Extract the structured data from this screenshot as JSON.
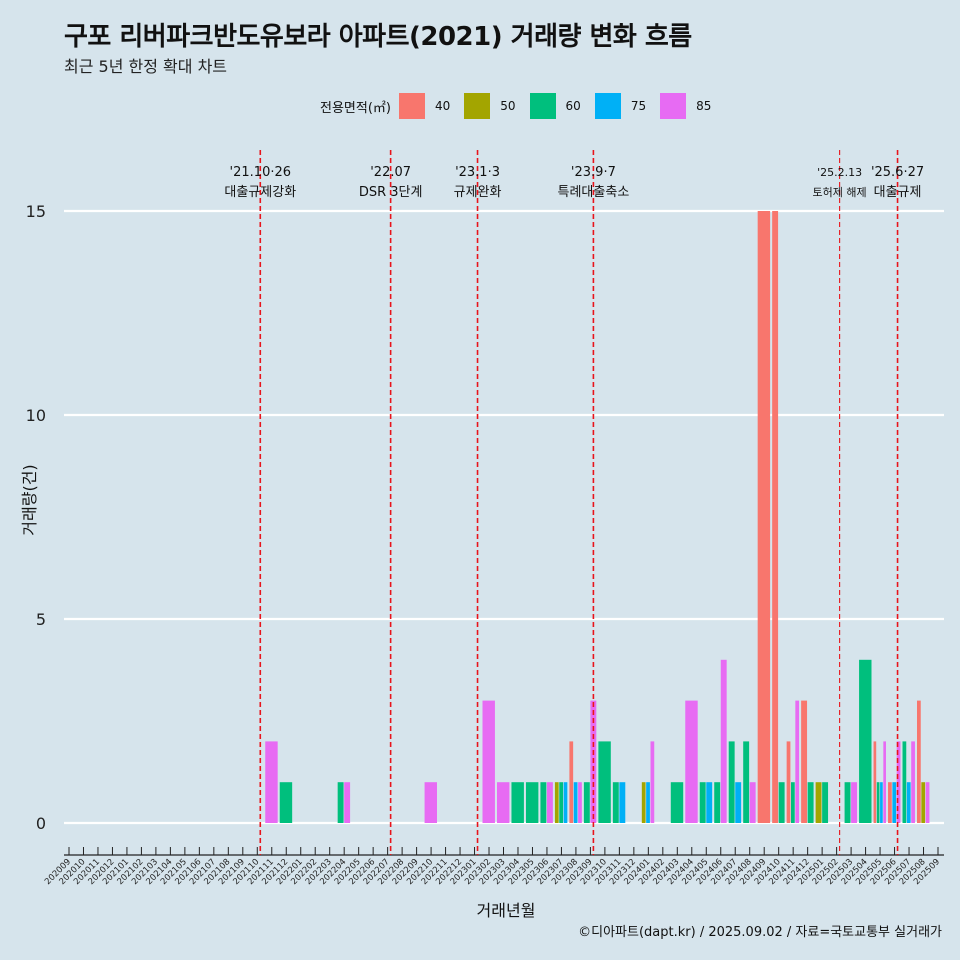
{
  "title": "구포 리버파크반도유보라 아파트(2021) 거래량 변화 흐름",
  "subtitle": "최근 5년 한정 확대 차트",
  "caption": "©디아파트(dapt.kr) / 2025.09.02 / 자료=국토교통부 실거래가",
  "legend": {
    "title": "전용면적(㎡)",
    "items": [
      {
        "label": "40",
        "color": "#f8766d"
      },
      {
        "label": "50",
        "color": "#a3a500"
      },
      {
        "label": "60",
        "color": "#00bf7d"
      },
      {
        "label": "75",
        "color": "#00b0f6"
      },
      {
        "label": "85",
        "color": "#e76bf3"
      }
    ]
  },
  "chart_data": {
    "type": "bar",
    "stacked": false,
    "xlabel": "거래년월",
    "ylabel": "거래량(건)",
    "ylim": [
      0,
      16
    ],
    "yticks": [
      0,
      5,
      10,
      15
    ],
    "grid": "horizontal",
    "categories": [
      "202009",
      "202010",
      "202011",
      "202012",
      "202101",
      "202102",
      "202103",
      "202104",
      "202105",
      "202106",
      "202107",
      "202108",
      "202109",
      "202110",
      "202111",
      "202112",
      "202201",
      "202202",
      "202203",
      "202204",
      "202205",
      "202206",
      "202207",
      "202208",
      "202209",
      "202210",
      "202211",
      "202212",
      "202301",
      "202302",
      "202303",
      "202304",
      "202305",
      "202306",
      "202307",
      "202308",
      "202309",
      "202310",
      "202311",
      "202312",
      "202401",
      "202402",
      "202403",
      "202404",
      "202405",
      "202406",
      "202407",
      "202408",
      "202409",
      "202410",
      "202411",
      "202412",
      "202501",
      "202502",
      "202503",
      "202504",
      "202505",
      "202506",
      "202507",
      "202508",
      "202509"
    ],
    "series_colors": {
      "40": "#f8766d",
      "50": "#a3a500",
      "60": "#00bf7d",
      "75": "#00b0f6",
      "85": "#e76bf3"
    },
    "groups": [
      {
        "month": "202111",
        "bars": [
          {
            "area": "85",
            "value": 2
          }
        ]
      },
      {
        "month": "202112",
        "bars": [
          {
            "area": "60",
            "value": 1
          }
        ]
      },
      {
        "month": "202204",
        "bars": [
          {
            "area": "60",
            "value": 1
          },
          {
            "area": "85",
            "value": 1
          }
        ]
      },
      {
        "month": "202210",
        "bars": [
          {
            "area": "85",
            "value": 1
          }
        ]
      },
      {
        "month": "202302",
        "bars": [
          {
            "area": "85",
            "value": 3
          }
        ]
      },
      {
        "month": "202303",
        "bars": [
          {
            "area": "85",
            "value": 1
          }
        ]
      },
      {
        "month": "202304",
        "bars": [
          {
            "area": "60",
            "value": 1
          }
        ]
      },
      {
        "month": "202305",
        "bars": [
          {
            "area": "60",
            "value": 1
          }
        ]
      },
      {
        "month": "202306",
        "bars": [
          {
            "area": "60",
            "value": 1
          },
          {
            "area": "85",
            "value": 1
          }
        ]
      },
      {
        "month": "202307",
        "bars": [
          {
            "area": "50",
            "value": 1
          },
          {
            "area": "60",
            "value": 1
          },
          {
            "area": "75",
            "value": 1
          }
        ]
      },
      {
        "month": "202308",
        "bars": [
          {
            "area": "40",
            "value": 2
          },
          {
            "area": "75",
            "value": 1
          },
          {
            "area": "85",
            "value": 1
          }
        ]
      },
      {
        "month": "202309",
        "bars": [
          {
            "area": "60",
            "value": 1
          },
          {
            "area": "85",
            "value": 3
          }
        ]
      },
      {
        "month": "202310",
        "bars": [
          {
            "area": "60",
            "value": 2
          }
        ]
      },
      {
        "month": "202311",
        "bars": [
          {
            "area": "60",
            "value": 1
          },
          {
            "area": "75",
            "value": 1
          }
        ]
      },
      {
        "month": "202401",
        "bars": [
          {
            "area": "50",
            "value": 1
          },
          {
            "area": "75",
            "value": 1
          },
          {
            "area": "85",
            "value": 2
          }
        ]
      },
      {
        "month": "202403",
        "bars": [
          {
            "area": "60",
            "value": 1
          }
        ]
      },
      {
        "month": "202404",
        "bars": [
          {
            "area": "85",
            "value": 3
          }
        ]
      },
      {
        "month": "202405",
        "bars": [
          {
            "area": "60",
            "value": 1
          },
          {
            "area": "75",
            "value": 1
          }
        ]
      },
      {
        "month": "202406",
        "bars": [
          {
            "area": "60",
            "value": 1
          },
          {
            "area": "85",
            "value": 4
          }
        ]
      },
      {
        "month": "202407",
        "bars": [
          {
            "area": "60",
            "value": 2
          },
          {
            "area": "75",
            "value": 1
          }
        ]
      },
      {
        "month": "202408",
        "bars": [
          {
            "area": "60",
            "value": 2
          },
          {
            "area": "85",
            "value": 1
          }
        ]
      },
      {
        "month": "202409",
        "bars": [
          {
            "area": "40",
            "value": 15
          }
        ]
      },
      {
        "month": "202410",
        "bars": [
          {
            "area": "40",
            "value": 15
          },
          {
            "area": "60",
            "value": 1
          }
        ]
      },
      {
        "month": "202411",
        "bars": [
          {
            "area": "40",
            "value": 2
          },
          {
            "area": "60",
            "value": 1
          },
          {
            "area": "85",
            "value": 3
          }
        ]
      },
      {
        "month": "202412",
        "bars": [
          {
            "area": "40",
            "value": 3
          },
          {
            "area": "60",
            "value": 1
          }
        ]
      },
      {
        "month": "202501",
        "bars": [
          {
            "area": "50",
            "value": 1
          },
          {
            "area": "60",
            "value": 1
          }
        ]
      },
      {
        "month": "202503",
        "bars": [
          {
            "area": "60",
            "value": 1
          },
          {
            "area": "85",
            "value": 1
          }
        ]
      },
      {
        "month": "202504",
        "bars": [
          {
            "area": "60",
            "value": 4
          }
        ]
      },
      {
        "month": "202505",
        "bars": [
          {
            "area": "40",
            "value": 2
          },
          {
            "area": "60",
            "value": 1
          },
          {
            "area": "75",
            "value": 1
          },
          {
            "area": "85",
            "value": 2
          }
        ]
      },
      {
        "month": "202506",
        "bars": [
          {
            "area": "40",
            "value": 1
          },
          {
            "area": "75",
            "value": 1
          },
          {
            "area": "85",
            "value": 2
          }
        ]
      },
      {
        "month": "202507",
        "bars": [
          {
            "area": "60",
            "value": 2
          },
          {
            "area": "75",
            "value": 1
          },
          {
            "area": "85",
            "value": 2
          }
        ]
      },
      {
        "month": "202508",
        "bars": [
          {
            "area": "40",
            "value": 3
          },
          {
            "area": "50",
            "value": 1
          },
          {
            "area": "85",
            "value": 1
          }
        ]
      }
    ],
    "events": [
      {
        "date": "'21.10·26",
        "label": "대출규제강화",
        "pos": 13.0,
        "style": "major"
      },
      {
        "date": "'22.07",
        "label": "DSR 3단계",
        "pos": 22.0,
        "style": "major"
      },
      {
        "date": "'23.1·3",
        "label": "규제완화",
        "pos": 28.0,
        "style": "major"
      },
      {
        "date": "'23.9·7",
        "label": "특례대출축소",
        "pos": 36.0,
        "style": "major"
      },
      {
        "date": "'25.2.13",
        "label": "토허제 해제",
        "pos": 53.0,
        "style": "minor"
      },
      {
        "date": "'25.6·27",
        "label": "대출규제",
        "pos": 57.0,
        "style": "major"
      }
    ]
  }
}
